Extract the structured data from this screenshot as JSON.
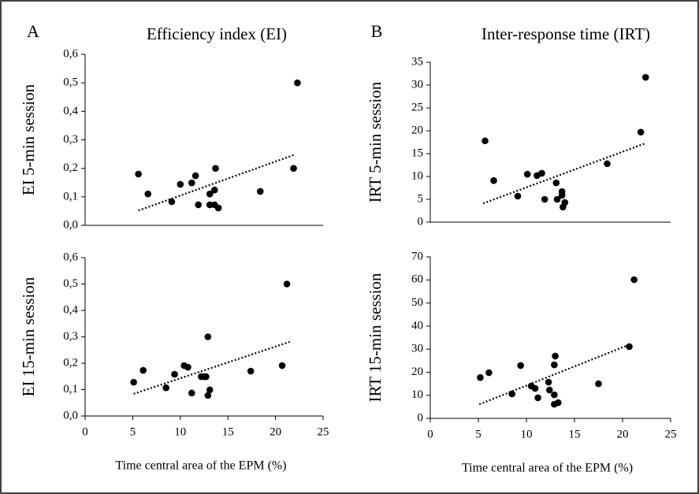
{
  "chart_data": [
    {
      "type": "scatter",
      "panel": "A",
      "title": "Efficiency index (EI)",
      "y_label": "EI 5-min session",
      "xlim": [
        0,
        25
      ],
      "ylim": [
        0,
        0.6
      ],
      "yticks": [
        {
          "value": 0,
          "label": "0,0"
        },
        {
          "value": 0.1,
          "label": "0,1"
        },
        {
          "value": 0.2,
          "label": "0,2"
        },
        {
          "value": 0.3,
          "label": "0,3"
        },
        {
          "value": 0.4,
          "label": "0,4"
        },
        {
          "value": 0.5,
          "label": "0,5"
        },
        {
          "value": 0.6,
          "label": "0,6"
        }
      ],
      "color": "#000000",
      "x": [
        5.6,
        6.6,
        9.1,
        10.0,
        11.2,
        11.6,
        11.9,
        13.1,
        13.1,
        13.6,
        13.7,
        13.6,
        14.0,
        18.4,
        21.9,
        22.3
      ],
      "values": [
        0.18,
        0.11,
        0.083,
        0.144,
        0.149,
        0.174,
        0.072,
        0.11,
        0.072,
        0.124,
        0.2,
        0.072,
        0.061,
        0.119,
        0.2,
        0.5
      ],
      "trendline": {
        "x": [
          5.6,
          22.1
        ],
        "values": [
          0.052,
          0.249
        ]
      }
    },
    {
      "type": "scatter",
      "panel": "B",
      "title": "Inter-response time (IRT)",
      "y_label": "IRT 5-min session",
      "xlim": [
        0,
        25
      ],
      "ylim": [
        0,
        35
      ],
      "yticks": [
        0,
        5,
        10,
        15,
        20,
        25,
        30,
        35
      ],
      "color": "#000000",
      "x": [
        5.7,
        6.6,
        9.1,
        10.1,
        11.1,
        11.6,
        11.9,
        13.1,
        13.2,
        13.7,
        13.7,
        13.8,
        14.0,
        18.4,
        21.9,
        22.4
      ],
      "values": [
        17.8,
        9.1,
        5.7,
        10.5,
        10.2,
        10.7,
        5.0,
        8.6,
        5.0,
        6.7,
        5.9,
        3.3,
        4.3,
        12.8,
        19.7,
        31.7
      ],
      "trendline": {
        "x": [
          5.5,
          22.3
        ],
        "values": [
          4.1,
          17.2
        ]
      }
    },
    {
      "type": "scatter",
      "y_label": "EI 15-min session",
      "x_label": "Time central area of the EPM (%)",
      "xlim": [
        0,
        25
      ],
      "ylim": [
        0,
        0.6
      ],
      "xticks": [
        0,
        5,
        10,
        15,
        20,
        25
      ],
      "yticks": [
        {
          "value": 0,
          "label": "0,0"
        },
        {
          "value": 0.1,
          "label": "0,1"
        },
        {
          "value": 0.2,
          "label": "0,2"
        },
        {
          "value": 0.3,
          "label": "0,3"
        },
        {
          "value": 0.4,
          "label": "0,4"
        },
        {
          "value": 0.5,
          "label": "0,5"
        },
        {
          "value": 0.6,
          "label": "0,6"
        }
      ],
      "color": "#000000",
      "x": [
        5.1,
        6.1,
        8.5,
        9.4,
        10.4,
        10.8,
        11.2,
        12.2,
        12.5,
        12.9,
        12.7,
        12.9,
        13.1,
        17.4,
        20.7,
        21.2
      ],
      "values": [
        0.128,
        0.173,
        0.107,
        0.158,
        0.191,
        0.185,
        0.087,
        0.149,
        0.149,
        0.3,
        0.149,
        0.078,
        0.099,
        0.17,
        0.191,
        0.5
      ],
      "trendline": {
        "x": [
          5.1,
          21.5
        ],
        "values": [
          0.084,
          0.281
        ]
      }
    },
    {
      "type": "scatter",
      "y_label": "IRT 15-min session",
      "x_label": "Time central area of the EPM (%)",
      "xlim": [
        0,
        25
      ],
      "ylim": [
        0,
        70
      ],
      "xticks": [
        0,
        5,
        10,
        15,
        20,
        25
      ],
      "yticks": [
        0,
        10,
        20,
        30,
        40,
        50,
        60,
        70
      ],
      "color": "#000000",
      "x": [
        5.2,
        6.1,
        8.5,
        9.4,
        10.5,
        10.9,
        11.2,
        12.3,
        12.4,
        12.9,
        13.0,
        12.9,
        12.9,
        13.3,
        17.5,
        20.7,
        21.2
      ],
      "values": [
        17.7,
        19.8,
        10.6,
        22.9,
        14.0,
        13.0,
        8.9,
        15.7,
        12.3,
        23.2,
        27.0,
        10.2,
        6.1,
        6.8,
        15.0,
        31.1,
        60.1
      ],
      "trendline": {
        "x": [
          5.1,
          20.8
        ],
        "values": [
          6.1,
          32.1
        ]
      }
    }
  ]
}
